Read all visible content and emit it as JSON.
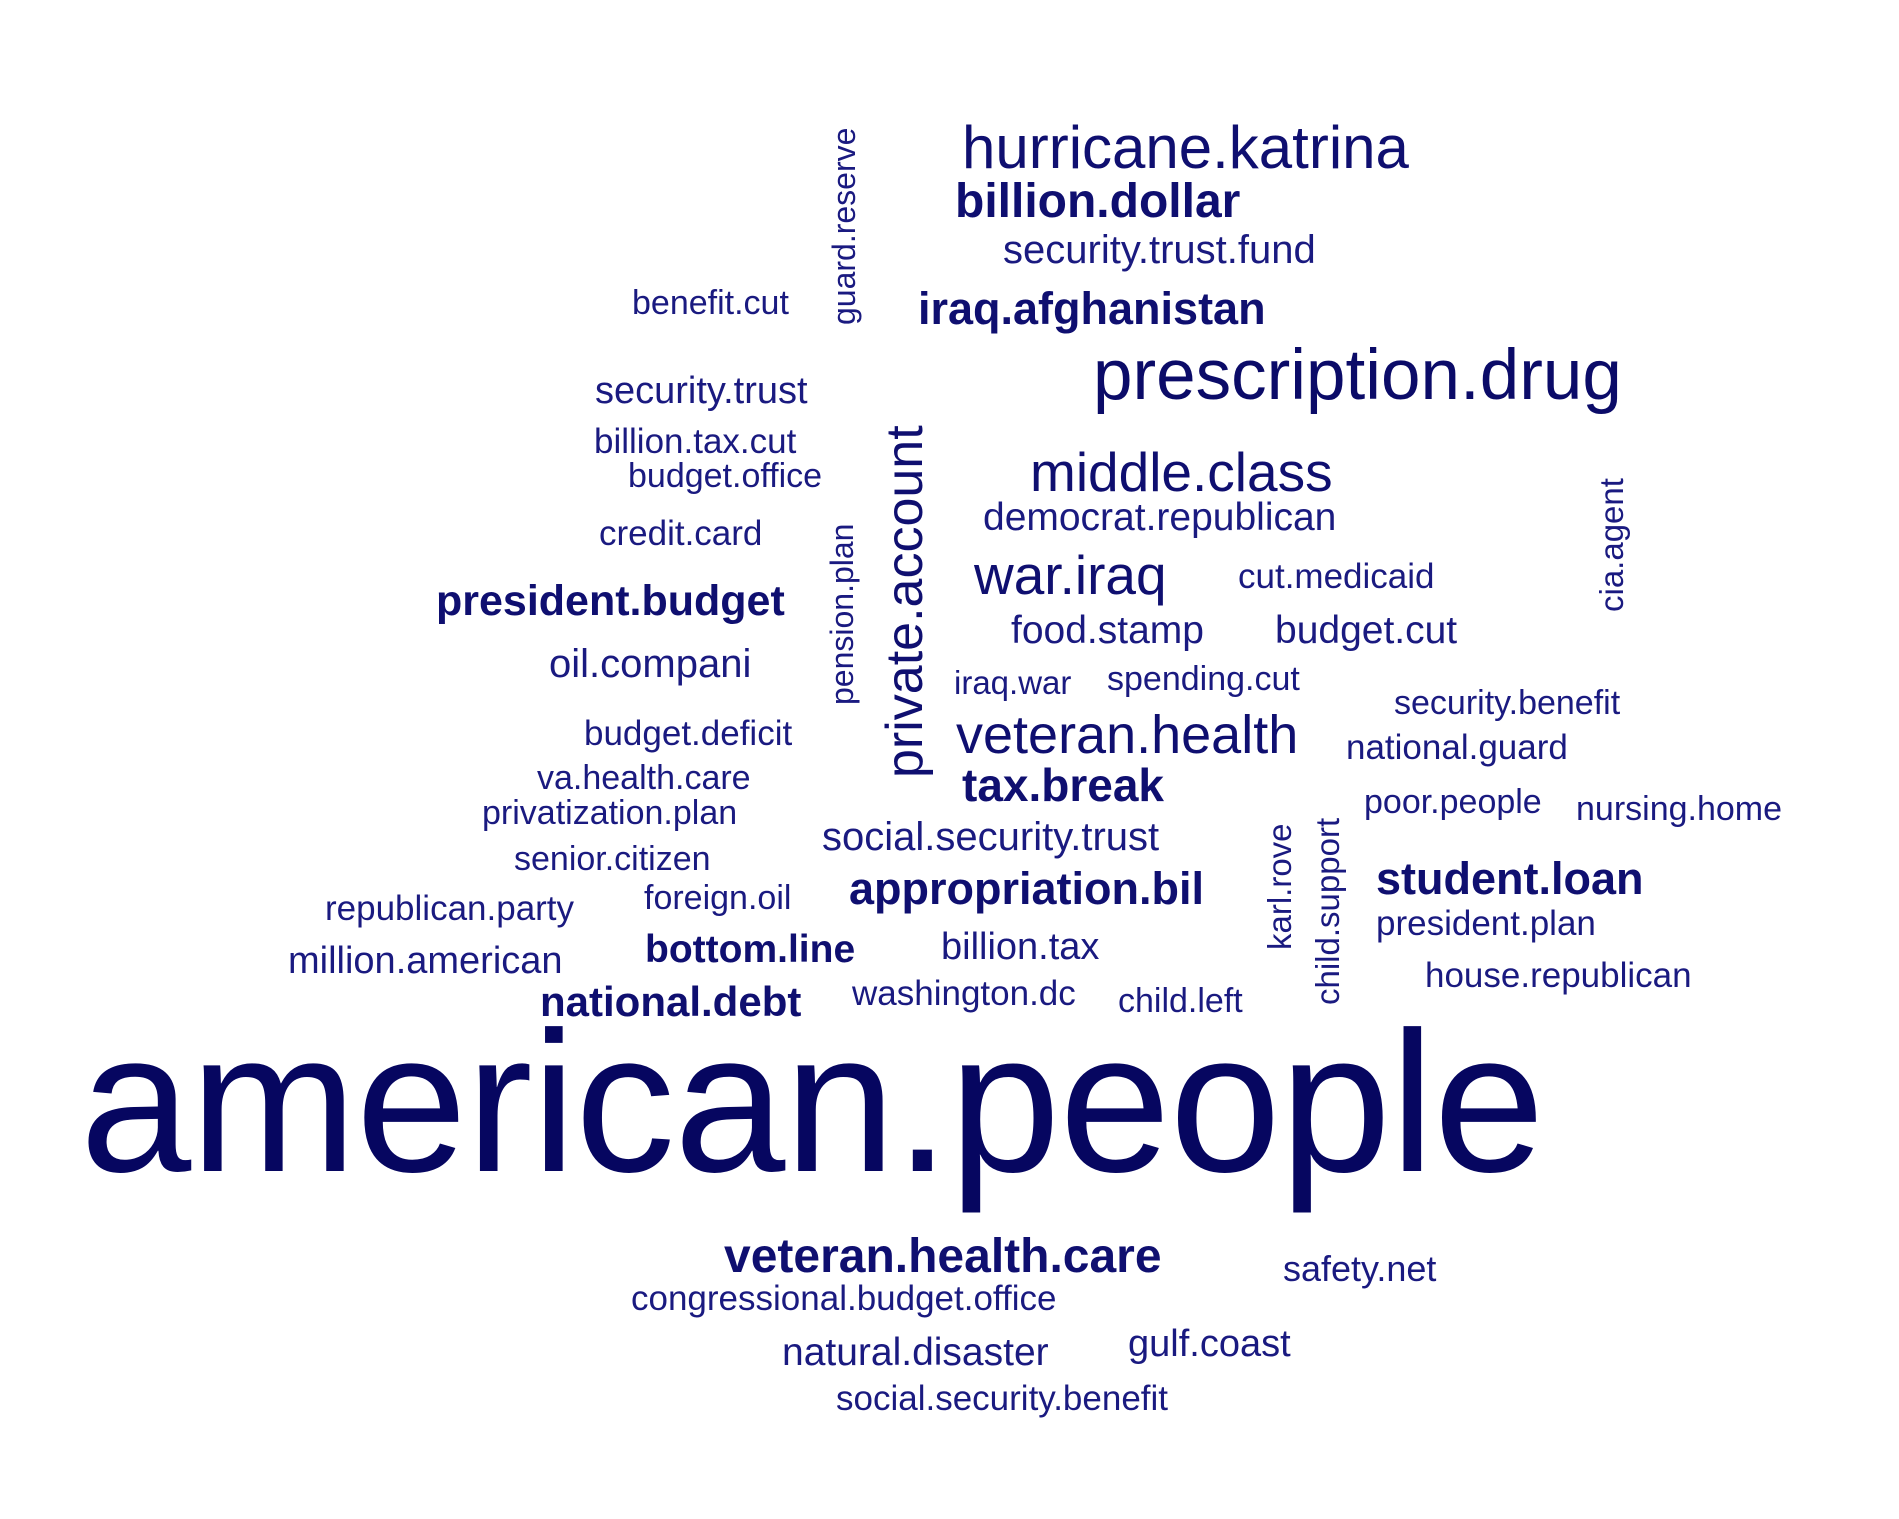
{
  "colors": {
    "background": "#ffffff",
    "word": "#11116f"
  },
  "words": {
    "hurricane_katrina": "hurricane.katrina",
    "billion_dollar": "billion.dollar",
    "security_trust_fund": "security.trust.fund",
    "guard_reserve": "guard.reserve",
    "benefit_cut": "benefit.cut",
    "iraq_afghanistan": "iraq.afghanistan",
    "prescription_drug": "prescription.drug",
    "security_trust": "security.trust",
    "billion_tax_cut": "billion.tax.cut",
    "budget_office": "budget.office",
    "private_account": "private.account",
    "middle_class": "middle.class",
    "democrat_republican": "democrat.republican",
    "cia_agent": "cia.agent",
    "credit_card": "credit.card",
    "pension_plan": "pension.plan",
    "war_iraq": "war.iraq",
    "cut_medicaid": "cut.medicaid",
    "president_budget": "president.budget",
    "food_stamp": "food.stamp",
    "budget_cut": "budget.cut",
    "oil_companies": "oil.compani",
    "iraq_war": "iraq.war",
    "spending_cut": "spending.cut",
    "security_benefit": "security.benefit",
    "budget_deficit": "budget.deficit",
    "veteran_health": "veteran.health",
    "national_guard": "national.guard",
    "va_health_care": "va.health.care",
    "tax_break": "tax.break",
    "poor_people": "poor.people",
    "nursing_home": "nursing.home",
    "privatization_plan": "privatization.plan",
    "karl_rove": "karl.rove",
    "child_support": "child.support",
    "social_security_trust": "social.security.trust",
    "senior_citizen": "senior.citizen",
    "student_loan": "student.loan",
    "appropriation_bill": "appropriation.bil",
    "foreign_oil": "foreign.oil",
    "republican_party": "republican.party",
    "president_plan": "president.plan",
    "bottom_line": "bottom.line",
    "billion_tax": "billion.tax",
    "million_american": "million.american",
    "house_republican": "house.republican",
    "washington_dc": "washington.dc",
    "national_debt": "national.debt",
    "child_left": "child.left",
    "american_people": "american.people",
    "veteran_health_care": "veteran.health.care",
    "safety_net": "safety.net",
    "congressional_budget_office": "congressional.budget.office",
    "natural_disaster": "natural.disaster",
    "gulf_coast": "gulf.coast",
    "social_security_benefit": "social.security.benefit"
  }
}
